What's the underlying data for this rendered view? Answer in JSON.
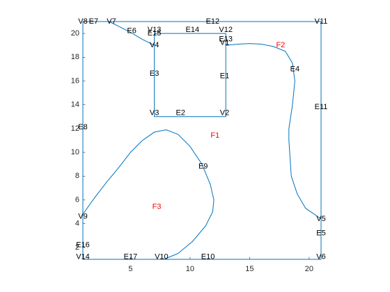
{
  "chart_data": {
    "type": "line",
    "xlim": [
      1,
      21
    ],
    "ylim": [
      1,
      21
    ],
    "xticks": [
      5,
      10,
      15,
      20
    ],
    "yticks": [
      2,
      4,
      6,
      8,
      10,
      12,
      14,
      16,
      18,
      20
    ],
    "series": [
      {
        "color": "#0072bd",
        "x": [
          1,
          21,
          21,
          1,
          1
        ],
        "y": [
          1,
          1,
          21,
          21,
          1
        ]
      },
      {
        "color": "#0072bd",
        "x": [
          3.2,
          4,
          5,
          6,
          7
        ],
        "y": [
          21,
          20.6,
          20.1,
          19.5,
          19
        ]
      },
      {
        "color": "#0072bd",
        "x": [
          7,
          7,
          13,
          13,
          7
        ],
        "y": [
          20,
          13,
          13,
          20,
          20
        ]
      },
      {
        "color": "#0072bd",
        "x": [
          13,
          14,
          15,
          16,
          17,
          18,
          18.6,
          18.8,
          18.6,
          18.3,
          18.3,
          18.5,
          19,
          19.7,
          21
        ],
        "y": [
          19,
          19.1,
          19.15,
          19.1,
          18.9,
          18.5,
          17.5,
          16,
          14,
          12,
          11,
          8,
          6.5,
          5.3,
          4.4
        ]
      },
      {
        "color": "#0072bd",
        "x": [
          1,
          2,
          3,
          4,
          5,
          6,
          7,
          8,
          9,
          10,
          11,
          11.7,
          12,
          11.9,
          11.3,
          10.2,
          9,
          7.8
        ],
        "y": [
          4.8,
          6.2,
          7.5,
          8.7,
          10,
          11,
          11.7,
          11.9,
          11.5,
          10.5,
          9,
          7.3,
          6,
          5,
          3.8,
          2.5,
          1.5,
          1
        ]
      }
    ],
    "labels": [
      {
        "text": "V8",
        "x": 1,
        "y": 21,
        "color": "#000000"
      },
      {
        "text": "E7",
        "x": 1.9,
        "y": 21,
        "color": "#000000"
      },
      {
        "text": "V7",
        "x": 3.4,
        "y": 21,
        "color": "#000000"
      },
      {
        "text": "E12",
        "x": 11.9,
        "y": 21,
        "color": "#000000"
      },
      {
        "text": "V11",
        "x": 21,
        "y": 21,
        "color": "#000000"
      },
      {
        "text": "E6",
        "x": 5.1,
        "y": 20.2,
        "color": "#000000"
      },
      {
        "text": "V13",
        "x": 7,
        "y": 20.3,
        "color": "#000000"
      },
      {
        "text": "E15",
        "x": 7,
        "y": 20,
        "color": "#000000"
      },
      {
        "text": "E14",
        "x": 10.2,
        "y": 20.3,
        "color": "#000000"
      },
      {
        "text": "V12",
        "x": 13,
        "y": 20.3,
        "color": "#000000"
      },
      {
        "text": "E13",
        "x": 13,
        "y": 19.5,
        "color": "#000000"
      },
      {
        "text": "V1",
        "x": 12.9,
        "y": 19.2,
        "color": "#000000"
      },
      {
        "text": "F2",
        "x": 17.6,
        "y": 19,
        "color": "#ff0000"
      },
      {
        "text": "V4",
        "x": 7,
        "y": 19,
        "color": "#000000"
      },
      {
        "text": "E4",
        "x": 18.8,
        "y": 17,
        "color": "#000000"
      },
      {
        "text": "E3",
        "x": 7,
        "y": 16.6,
        "color": "#000000"
      },
      {
        "text": "E1",
        "x": 12.9,
        "y": 16.4,
        "color": "#000000"
      },
      {
        "text": "E11",
        "x": 21,
        "y": 13.8,
        "color": "#000000"
      },
      {
        "text": "V3",
        "x": 7,
        "y": 13.3,
        "color": "#000000"
      },
      {
        "text": "E2",
        "x": 9.2,
        "y": 13.3,
        "color": "#000000"
      },
      {
        "text": "V2",
        "x": 12.9,
        "y": 13.3,
        "color": "#000000"
      },
      {
        "text": "E8",
        "x": 1,
        "y": 12.1,
        "color": "#000000"
      },
      {
        "text": "F1",
        "x": 12.1,
        "y": 11.4,
        "color": "#ff0000"
      },
      {
        "text": "E9",
        "x": 11.1,
        "y": 8.8,
        "color": "#000000"
      },
      {
        "text": "F3",
        "x": 7.2,
        "y": 5.4,
        "color": "#ff0000"
      },
      {
        "text": "V9",
        "x": 1,
        "y": 4.6,
        "color": "#000000"
      },
      {
        "text": "V5",
        "x": 21,
        "y": 4.4,
        "color": "#000000"
      },
      {
        "text": "E5",
        "x": 21,
        "y": 3.2,
        "color": "#000000"
      },
      {
        "text": "E16",
        "x": 1,
        "y": 2.2,
        "color": "#000000"
      },
      {
        "text": "V14",
        "x": 1,
        "y": 1.2,
        "color": "#000000"
      },
      {
        "text": "E17",
        "x": 5,
        "y": 1.2,
        "color": "#000000"
      },
      {
        "text": "V10",
        "x": 7.6,
        "y": 1.2,
        "color": "#000000"
      },
      {
        "text": "E10",
        "x": 11.5,
        "y": 1.2,
        "color": "#000000"
      },
      {
        "text": "V6",
        "x": 21,
        "y": 1.2,
        "color": "#000000"
      }
    ]
  }
}
